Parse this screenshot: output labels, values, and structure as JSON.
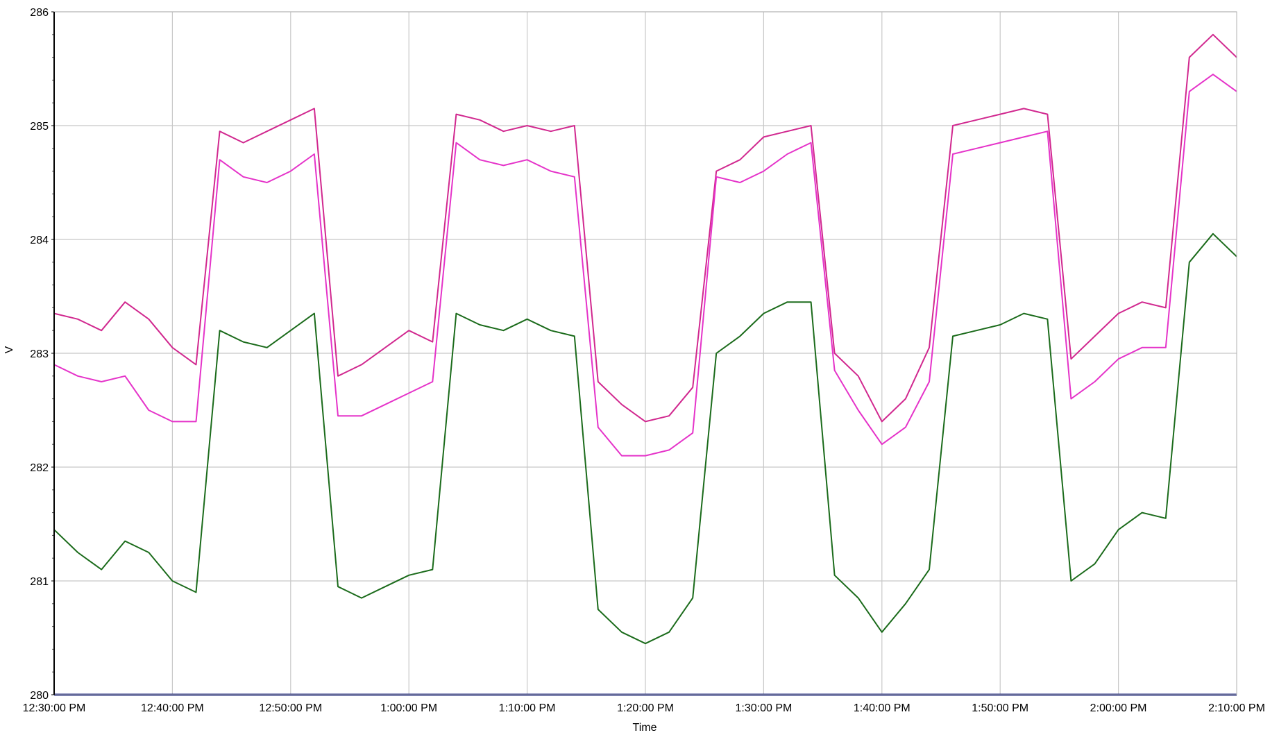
{
  "chart_data": {
    "type": "line",
    "xlabel": "Time",
    "ylabel": "V",
    "ylim": [
      280,
      286
    ],
    "yticks": [
      "280",
      "281",
      "282",
      "283",
      "284",
      "285",
      "286"
    ],
    "xticks": [
      "12:30:00 PM",
      "12:40:00 PM",
      "12:50:00 PM",
      "1:00:00 PM",
      "1:10:00 PM",
      "1:20:00 PM",
      "1:30:00 PM",
      "1:40:00 PM",
      "1:50:00 PM",
      "2:00:00 PM",
      "2:10:00 PM"
    ],
    "x_minutes_from_start": [
      0,
      2,
      4,
      6,
      8,
      10,
      12,
      14,
      16,
      18,
      20,
      22,
      24,
      26,
      28,
      30,
      32,
      34,
      36,
      38,
      40,
      42,
      44,
      46,
      48,
      50,
      52,
      54,
      56,
      58,
      60,
      62,
      64,
      66,
      68,
      70,
      72,
      74,
      76,
      78,
      80,
      82,
      84,
      86,
      88,
      90,
      92,
      94,
      96,
      98,
      100
    ],
    "grid": true,
    "legend": "none",
    "series": [
      {
        "color": "#d1288f",
        "values": [
          283.35,
          283.3,
          283.2,
          283.45,
          283.3,
          283.05,
          282.9,
          284.95,
          284.85,
          284.95,
          285.05,
          285.15,
          282.8,
          282.9,
          283.05,
          283.2,
          283.1,
          285.1,
          285.05,
          284.95,
          285.0,
          284.95,
          285.0,
          282.75,
          282.55,
          282.4,
          282.45,
          282.7,
          284.6,
          284.7,
          284.9,
          284.95,
          285.0,
          283.0,
          282.8,
          282.4,
          282.6,
          283.05,
          285.0,
          285.05,
          285.1,
          285.15,
          285.1,
          282.95,
          283.15,
          283.35,
          283.45,
          283.4,
          285.6,
          285.8,
          285.6
        ]
      },
      {
        "color": "#e533c9",
        "values": [
          282.9,
          282.8,
          282.75,
          282.8,
          282.5,
          282.4,
          282.4,
          284.7,
          284.55,
          284.5,
          284.6,
          284.75,
          282.45,
          282.45,
          282.55,
          282.65,
          282.75,
          284.85,
          284.7,
          284.65,
          284.7,
          284.6,
          284.55,
          282.35,
          282.1,
          282.1,
          282.15,
          282.3,
          284.55,
          284.5,
          284.6,
          284.75,
          284.85,
          282.85,
          282.5,
          282.2,
          282.35,
          282.75,
          284.75,
          284.8,
          284.85,
          284.9,
          284.95,
          282.6,
          282.75,
          282.95,
          283.05,
          283.05,
          285.3,
          285.45,
          285.3
        ]
      },
      {
        "color": "#1b6b1b",
        "values": [
          281.45,
          281.25,
          281.1,
          281.35,
          281.25,
          281.0,
          280.9,
          283.2,
          283.1,
          283.05,
          283.2,
          283.35,
          280.95,
          280.85,
          280.95,
          281.05,
          281.1,
          283.35,
          283.25,
          283.2,
          283.3,
          283.2,
          283.15,
          280.75,
          280.55,
          280.45,
          280.55,
          280.85,
          283.0,
          283.15,
          283.35,
          283.45,
          283.45,
          281.05,
          280.85,
          280.55,
          280.8,
          281.1,
          283.15,
          283.2,
          283.25,
          283.35,
          283.3,
          281.0,
          281.15,
          281.45,
          281.6,
          281.55,
          283.8,
          284.05,
          283.85
        ]
      },
      {
        "color": "#1a237e",
        "values": [
          280.0,
          280.0,
          280.0,
          280.0,
          280.0,
          280.0,
          280.0,
          280.0,
          280.0,
          280.0,
          280.0,
          280.0,
          280.0,
          280.0,
          280.0,
          280.0,
          280.0,
          280.0,
          280.0,
          280.0,
          280.0,
          280.0,
          280.0,
          280.0,
          280.0,
          280.0,
          280.0,
          280.0,
          280.0,
          280.0,
          280.0,
          280.0,
          280.0,
          280.0,
          280.0,
          280.0,
          280.0,
          280.0,
          280.0,
          280.0,
          280.0,
          280.0,
          280.0,
          280.0,
          280.0,
          280.0,
          280.0,
          280.0,
          280.0,
          280.0,
          280.0
        ]
      }
    ]
  }
}
